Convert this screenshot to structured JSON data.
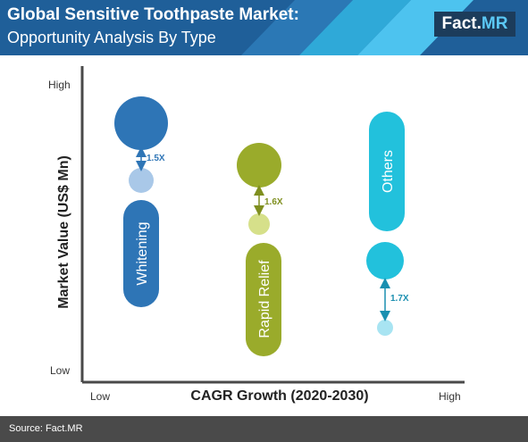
{
  "header": {
    "title": "Global Sensitive Toothpaste Market:",
    "subtitle": "Opportunity Analysis By Type",
    "logo_main": "Fact",
    "logo_dot": ".",
    "logo_accent": "MR"
  },
  "footer": {
    "source": "Source: Fact.MR"
  },
  "colors": {
    "header_bg": "#1f5f99",
    "header_stripe_light": "#4dc3ef",
    "header_stripe_mid": "#2fa9d8",
    "logo_bg": "#1c3c5b",
    "logo_accent": "#5bc8f5",
    "footer_bg": "#4a4a4a",
    "axis": "#4a4a4a"
  },
  "chart_data": {
    "type": "bubble",
    "xlabel": "CAGR Growth (2020-2030)",
    "ylabel": "Market Value (US$ Mn)",
    "x_low_label": "Low",
    "x_high_label": "High",
    "y_low_label": "Low",
    "y_high_label": "High",
    "segments": [
      {
        "name": "Whitening",
        "multiplier": "1.5X",
        "color": "#2e75b6",
        "light_color": "#a9c8e8",
        "arrow_color": "#2e75b6"
      },
      {
        "name": "Rapid Relief",
        "multiplier": "1.6X",
        "color": "#9aab2b",
        "light_color": "#d6e08a",
        "arrow_color": "#7f8f1f"
      },
      {
        "name": "Others",
        "multiplier": "1.7X",
        "color": "#22c1dc",
        "light_color": "#a8e4f2",
        "arrow_color": "#1a8fb0"
      }
    ]
  }
}
